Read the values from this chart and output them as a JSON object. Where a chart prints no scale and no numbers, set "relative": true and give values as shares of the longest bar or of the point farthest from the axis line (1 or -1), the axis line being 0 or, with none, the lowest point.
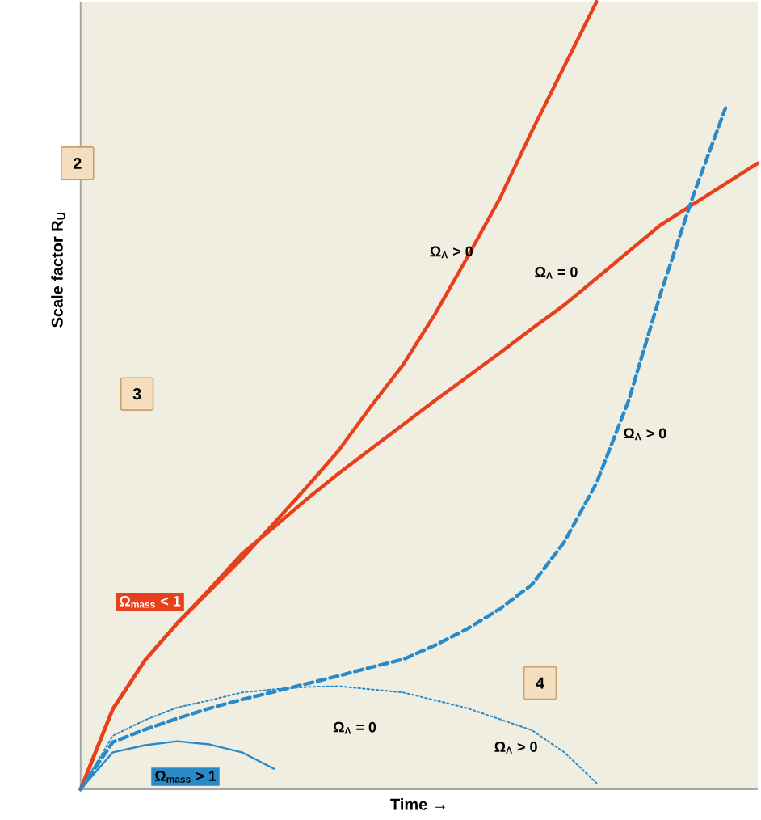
{
  "chart_data": {
    "type": "line",
    "relative": true,
    "xlabel": "Time →",
    "ylabel": "Scale factor R$_{U}$",
    "categories": [
      null,
      null,
      null,
      null,
      null,
      null,
      null,
      null,
      null,
      null,
      null,
      null,
      null,
      null,
      null,
      null,
      null,
      null,
      null,
      null,
      null,
      null
    ],
    "series": [
      {
        "color": "#e8401c",
        "line_style": "solid",
        "values": [
          0,
          0.102,
          0.164,
          0.211,
          0.252,
          0.293,
          0.338,
          0.383,
          0.43,
          0.486,
          0.539,
          0.604,
          0.676,
          0.75,
          0.836,
          0.918,
          1,
          null,
          null,
          null,
          null,
          null
        ]
      },
      {
        "color": "#e8401c",
        "line_style": "solid",
        "values": [
          0,
          0.102,
          0.164,
          0.211,
          0.254,
          0.299,
          0.333,
          0.368,
          0.401,
          0.432,
          0.463,
          0.494,
          0.524,
          0.554,
          0.585,
          0.615,
          0.649,
          0.683,
          0.717,
          0.743,
          0.769,
          0.795
        ]
      },
      {
        "color": "#2a8ac8",
        "line_style": "dashed",
        "values": [
          0,
          0.06,
          0.076,
          0.09,
          0.103,
          0.114,
          0.124,
          0.134,
          0.144,
          0.155,
          0.165,
          0.183,
          0.204,
          0.229,
          0.26,
          0.314,
          0.389,
          0.494,
          0.631,
          0.754,
          0.865,
          null
        ]
      },
      {
        "color": "#2a8ac8",
        "line_style": "dotted",
        "values": [
          0,
          0.068,
          0.088,
          0.104,
          0.113,
          0.123,
          0.127,
          0.13,
          0.131,
          0.127,
          0.123,
          0.113,
          0.103,
          0.089,
          0.075,
          0.047,
          0.008,
          null,
          null,
          null,
          null,
          null
        ]
      },
      {
        "color": "#2a8ac8",
        "line_style": "solid",
        "values": [
          0,
          0.047,
          0.056,
          0.061,
          0.057,
          0.047,
          0.026,
          null,
          null,
          null,
          null,
          null,
          null,
          null,
          null,
          null,
          null,
          null,
          null,
          null,
          null,
          null
        ]
      }
    ],
    "annotations": [
      "Ω$_{Λ}$ > 0",
      "Ω$_{Λ}$ = 0",
      "Ω$_{Λ}$ > 0",
      "Ω$_{Λ}$ = 0",
      "Ω$_{Λ}$ > 0",
      "Ω$_{mass}$ < 1",
      "Ω$_{mass}$ > 1",
      "2",
      "3",
      "4"
    ]
  }
}
